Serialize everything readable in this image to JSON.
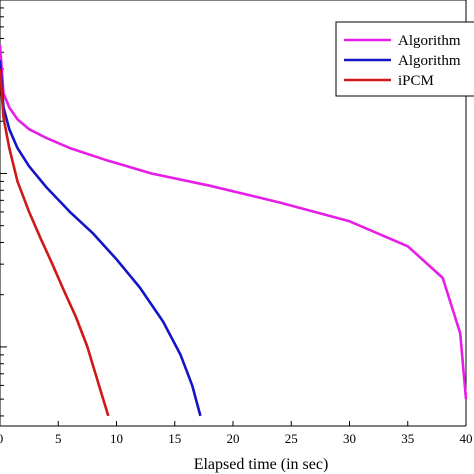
{
  "chart_data": {
    "type": "line",
    "title": "",
    "xlabel": "Elapsed time (in sec)",
    "ylabel": "",
    "xlim": [
      0,
      40
    ],
    "ylim": [
      0,
      1
    ],
    "yscale": "log",
    "grid": false,
    "legend": {
      "placement": "top-right"
    },
    "x_ticks": [
      "0",
      "5",
      "10",
      "15",
      "20",
      "25",
      "30",
      "35",
      "40"
    ],
    "series": [
      {
        "name": "Algorithm",
        "color": "#e61ee6",
        "x": [
          0,
          0.3,
          0.8,
          1.5,
          2.5,
          4,
          6,
          9,
          13,
          18,
          24,
          30,
          35,
          38,
          39.5,
          40
        ],
        "y": [
          0.55,
          0.29,
          0.24,
          0.205,
          0.18,
          0.16,
          0.14,
          0.12,
          0.1,
          0.085,
          0.068,
          0.053,
          0.038,
          0.025,
          0.012,
          0.005
        ]
      },
      {
        "name": "Algorithm",
        "color": "#1414c8",
        "x": [
          0,
          0.3,
          0.8,
          1.5,
          2.5,
          4,
          6,
          8,
          10,
          12,
          14,
          15.5,
          16.5,
          17.2
        ],
        "y": [
          0.45,
          0.24,
          0.18,
          0.14,
          0.11,
          0.083,
          0.06,
          0.045,
          0.032,
          0.022,
          0.014,
          0.009,
          0.006,
          0.004
        ]
      },
      {
        "name": "iPCM",
        "color": "#d01818",
        "x": [
          0,
          0.3,
          0.8,
          1.5,
          2.5,
          3.5,
          4.5,
          5.5,
          6.5,
          7.5,
          8.5,
          9.3
        ],
        "y": [
          0.4,
          0.21,
          0.14,
          0.09,
          0.06,
          0.042,
          0.03,
          0.021,
          0.015,
          0.01,
          0.006,
          0.004
        ]
      }
    ]
  }
}
